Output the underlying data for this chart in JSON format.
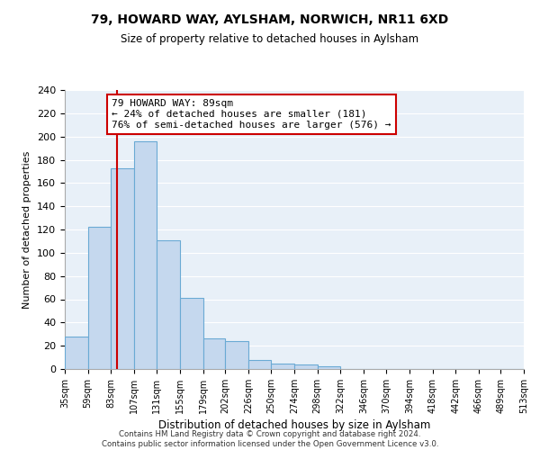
{
  "title1": "79, HOWARD WAY, AYLSHAM, NORWICH, NR11 6XD",
  "title2": "Size of property relative to detached houses in Aylsham",
  "xlabel": "Distribution of detached houses by size in Aylsham",
  "ylabel": "Number of detached properties",
  "bar_values": [
    28,
    122,
    173,
    196,
    111,
    61,
    26,
    24,
    8,
    5,
    4,
    2,
    0,
    0,
    0,
    0,
    0,
    0,
    0,
    0
  ],
  "bin_edges": [
    35,
    59,
    83,
    107,
    131,
    155,
    179,
    202,
    226,
    250,
    274,
    298,
    322,
    346,
    370,
    394,
    418,
    442,
    466,
    489,
    513
  ],
  "tick_labels": [
    "35sqm",
    "59sqm",
    "83sqm",
    "107sqm",
    "131sqm",
    "155sqm",
    "179sqm",
    "202sqm",
    "226sqm",
    "250sqm",
    "274sqm",
    "298sqm",
    "322sqm",
    "346sqm",
    "370sqm",
    "394sqm",
    "418sqm",
    "442sqm",
    "466sqm",
    "489sqm",
    "513sqm"
  ],
  "bar_color": "#c5d8ee",
  "bar_edge_color": "#6aaad4",
  "vline_x": 89,
  "vline_color": "#cc0000",
  "annotation_line1": "79 HOWARD WAY: 89sqm",
  "annotation_line2": "← 24% of detached houses are smaller (181)",
  "annotation_line3": "76% of semi-detached houses are larger (576) →",
  "ylim": [
    0,
    240
  ],
  "yticks": [
    0,
    20,
    40,
    60,
    80,
    100,
    120,
    140,
    160,
    180,
    200,
    220,
    240
  ],
  "plot_bg_color": "#e8f0f8",
  "background_color": "#ffffff",
  "grid_color": "#ffffff",
  "footer_line1": "Contains HM Land Registry data © Crown copyright and database right 2024.",
  "footer_line2": "Contains public sector information licensed under the Open Government Licence v3.0."
}
